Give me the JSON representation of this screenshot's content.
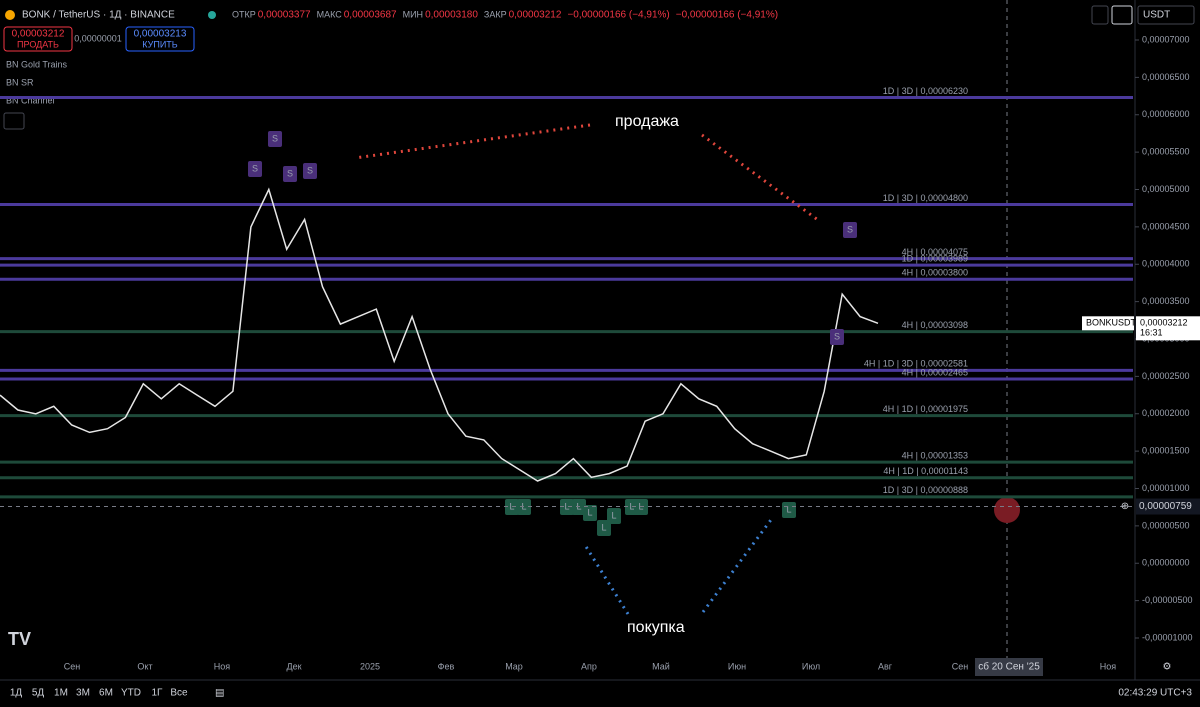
{
  "header": {
    "symbol": "BONK / TetherUS · 1Д · BINANCE",
    "ohlc": [
      {
        "key": "ОТКР",
        "value": "0,00003377"
      },
      {
        "key": "МАКС",
        "value": "0,00003687"
      },
      {
        "key": "МИН",
        "value": "0,00003180"
      },
      {
        "key": "ЗАКР",
        "value": "0,00003212"
      }
    ],
    "change": "−0,00000166 (−4,91%)",
    "change2": "−0,00000166 (−4,91%)",
    "sell_price": "0,00003212",
    "sell_label": "ПРОДАТЬ",
    "spread": "0,00000001",
    "buy_price": "0,00003213",
    "buy_label": "КУПИТЬ",
    "currency": "USDT"
  },
  "indicators": [
    "BN Gold Trains",
    "BN SR",
    "BN Channel"
  ],
  "chart": {
    "ylim": [
      -1.1e-05,
      7.25e-05
    ],
    "yticks": [
      {
        "value": 7e-05,
        "label": "0,00007000"
      },
      {
        "value": 6.5e-05,
        "label": "0,00006500"
      },
      {
        "value": 6e-05,
        "label": "0,00006000"
      },
      {
        "value": 5.5e-05,
        "label": "0,00005500"
      },
      {
        "value": 5e-05,
        "label": "0,00005000"
      },
      {
        "value": 4.5e-05,
        "label": "0,00004500"
      },
      {
        "value": 4e-05,
        "label": "0,00004000"
      },
      {
        "value": 3.5e-05,
        "label": "0,00003500"
      },
      {
        "value": 3e-05,
        "label": "0,00003000"
      },
      {
        "value": 2.5e-05,
        "label": "0,00002500"
      },
      {
        "value": 2e-05,
        "label": "0,00002000"
      },
      {
        "value": 1.5e-05,
        "label": "0,00001500"
      },
      {
        "value": 1e-05,
        "label": "0,00001000"
      },
      {
        "value": 5e-06,
        "label": "0,00000500"
      },
      {
        "value": 0,
        "label": "0,00000000"
      },
      {
        "value": -5e-06,
        "label": "-0,00000500"
      },
      {
        "value": -1e-05,
        "label": "-0,00001000"
      }
    ],
    "levels": [
      {
        "value": 6.23e-05,
        "label": "1D | 3D | 0,00006230",
        "color": "#4b3a9c"
      },
      {
        "value": 4.8e-05,
        "label": "1D | 3D | 0,00004800",
        "color": "#4b3a9c"
      },
      {
        "value": 4.075e-05,
        "label": "4H | 0,00004075",
        "color": "#4b3a9c"
      },
      {
        "value": 3.989e-05,
        "label": "1D | 0,00003989",
        "color": "#4b3a9c"
      },
      {
        "value": 3.8e-05,
        "label": "4H | 0,00003800",
        "color": "#4b3a9c"
      },
      {
        "value": 3.098e-05,
        "label": "4H | 0,00003098",
        "color": "#1e4a3a"
      },
      {
        "value": 2.581e-05,
        "label": "4H | 1D | 3D | 0,00002581",
        "color": "#4b3a9c"
      },
      {
        "value": 2.465e-05,
        "label": "4H | 0,00002465",
        "color": "#4b3a9c"
      },
      {
        "value": 1.975e-05,
        "label": "4H | 1D | 0,00001975",
        "color": "#1e4a3a"
      },
      {
        "value": 1.353e-05,
        "label": "4H | 0,00001353",
        "color": "#1e4a3a"
      },
      {
        "value": 1.143e-05,
        "label": "4H | 1D | 0,00001143",
        "color": "#1e4a3a"
      },
      {
        "value": 8.88e-06,
        "label": "1D | 3D | 0,00000888",
        "color": "#1e4a3a"
      }
    ],
    "price": [
      2.25e-05,
      2.05e-05,
      2e-05,
      2.1e-05,
      1.85e-05,
      1.75e-05,
      1.8e-05,
      1.95e-05,
      2.4e-05,
      2.2e-05,
      2.4e-05,
      2.25e-05,
      2.1e-05,
      2.3e-05,
      4.5e-05,
      5e-05,
      4.2e-05,
      4.6e-05,
      3.7e-05,
      3.2e-05,
      3.3e-05,
      3.4e-05,
      2.7e-05,
      3.3e-05,
      2.6e-05,
      2e-05,
      1.7e-05,
      1.65e-05,
      1.4e-05,
      1.25e-05,
      1.1e-05,
      1.2e-05,
      1.4e-05,
      1.15e-05,
      1.2e-05,
      1.3e-05,
      1.9e-05,
      2e-05,
      2.4e-05,
      2.2e-05,
      2.1e-05,
      1.8e-05,
      1.6e-05,
      1.5e-05,
      1.4e-05,
      1.45e-05,
      2.3e-05,
      3.6e-05,
      3.3e-05,
      3.21e-05
    ],
    "xlabels": [
      "Сен",
      "Окт",
      "Ноя",
      "Дек",
      "2025",
      "Фев",
      "Мар",
      "Апр",
      "Май",
      "Июн",
      "Июл",
      "Авг",
      "Сен",
      "Ноя"
    ],
    "cursor_date": "сб 20 Сен '25",
    "cursor_price": {
      "value": 7.59e-06,
      "label": "0,00000759"
    },
    "ticker": "BONKUSDT",
    "last_price": "0,00003212",
    "countdown": "16:31",
    "sell_signal": "S",
    "buy_signal": "L",
    "annotation_sell": "продажа",
    "annotation_buy": "покупка"
  },
  "footer": {
    "ranges": [
      "1Д",
      "5Д",
      "1М",
      "3М",
      "6М",
      "YTD",
      "1Г",
      "Все"
    ],
    "clock": "02:43:29 UTC+3"
  }
}
